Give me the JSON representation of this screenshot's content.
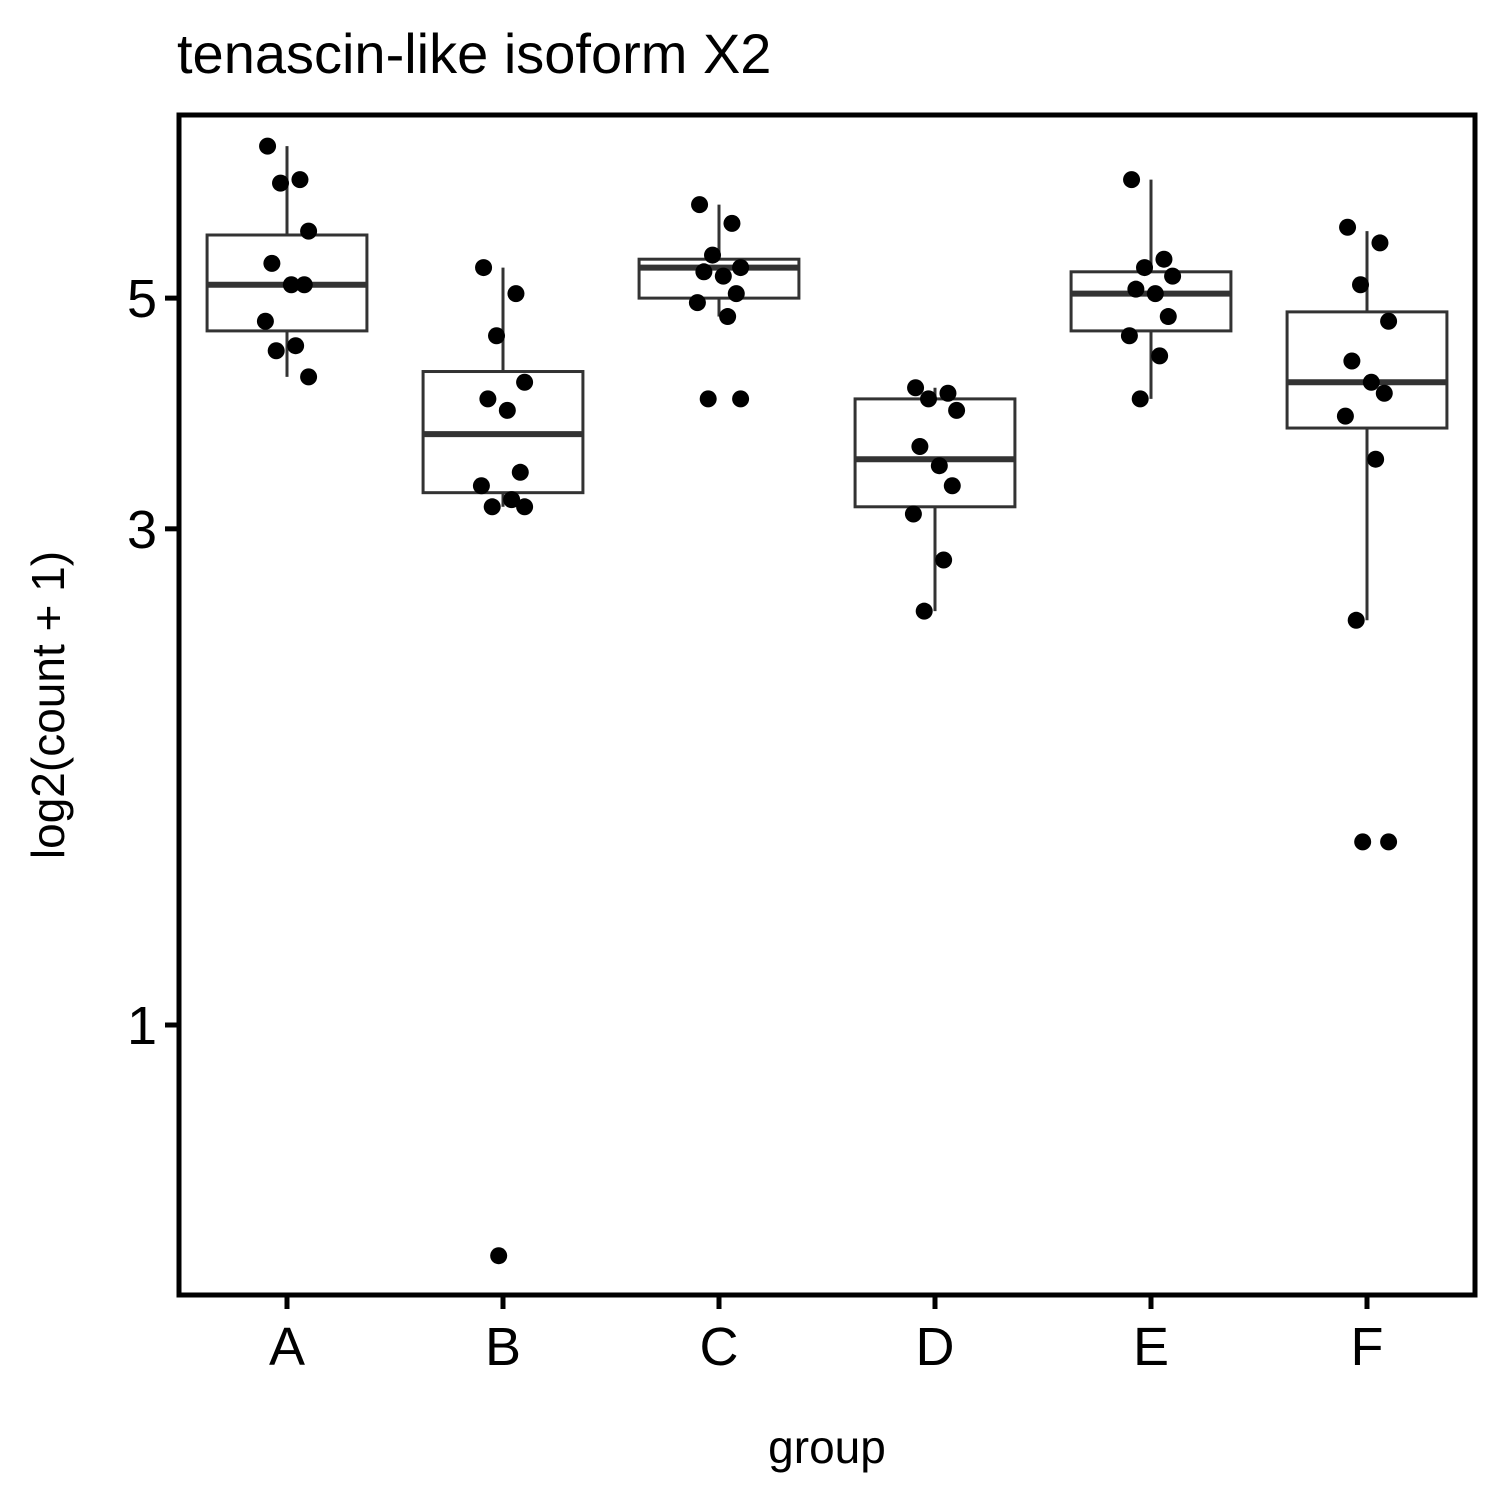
{
  "chart_data": {
    "type": "boxplot",
    "title": "tenascin-like isoform X2",
    "xlabel": "group",
    "ylabel": "log2(count + 1)",
    "scale": "log",
    "categories": [
      "A",
      "B",
      "C",
      "D",
      "E",
      "F"
    ],
    "y_ticks": [
      1,
      3,
      5
    ],
    "ylim": [
      0.55,
      7.5
    ],
    "grid": false,
    "boxes": [
      {
        "q1": 4.65,
        "median": 5.15,
        "q3": 5.75,
        "whisker_low": 4.2,
        "whisker_high": 7.0
      },
      {
        "q1": 3.25,
        "median": 3.7,
        "q3": 4.25,
        "whisker_low": 3.15,
        "whisker_high": 5.35
      },
      {
        "q1": 5.0,
        "median": 5.35,
        "q3": 5.45,
        "whisker_low": 4.8,
        "whisker_high": 6.15
      },
      {
        "q1": 3.15,
        "median": 3.5,
        "q3": 4.0,
        "whisker_low": 2.5,
        "whisker_high": 4.1
      },
      {
        "q1": 4.65,
        "median": 5.05,
        "q3": 5.3,
        "whisker_low": 4.0,
        "whisker_high": 6.5
      },
      {
        "q1": 3.75,
        "median": 4.15,
        "q3": 4.85,
        "whisker_low": 2.45,
        "whisker_high": 5.8
      }
    ],
    "points": [
      [
        7.0,
        6.5,
        6.45,
        5.8,
        5.4,
        5.15,
        5.15,
        4.75,
        4.5,
        4.45,
        4.2
      ],
      [
        5.35,
        5.05,
        4.6,
        4.15,
        4.0,
        3.9,
        3.4,
        3.3,
        3.2,
        3.15,
        3.15,
        0.6
      ],
      [
        6.15,
        5.9,
        5.5,
        5.35,
        5.3,
        5.25,
        5.05,
        4.95,
        4.8,
        4.0,
        4.0
      ],
      [
        4.1,
        4.05,
        4.0,
        3.9,
        3.6,
        3.45,
        3.3,
        3.1,
        2.8,
        2.5
      ],
      [
        6.5,
        5.45,
        5.35,
        5.25,
        5.1,
        5.05,
        4.8,
        4.6,
        4.4,
        4.0
      ],
      [
        5.85,
        5.65,
        5.15,
        4.75,
        4.35,
        4.15,
        4.05,
        3.85,
        3.5,
        2.45,
        1.5,
        1.5
      ]
    ]
  }
}
